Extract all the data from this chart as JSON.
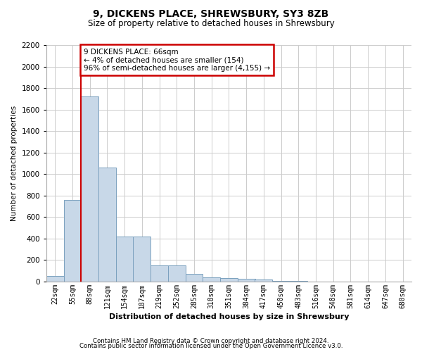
{
  "title": "9, DICKENS PLACE, SHREWSBURY, SY3 8ZB",
  "subtitle": "Size of property relative to detached houses in Shrewsbury",
  "xlabel": "Distribution of detached houses by size in Shrewsbury",
  "ylabel": "Number of detached properties",
  "footnote1": "Contains HM Land Registry data © Crown copyright and database right 2024.",
  "footnote2": "Contains public sector information licensed under the Open Government Licence v3.0.",
  "bar_labels": [
    "22sqm",
    "55sqm",
    "88sqm",
    "121sqm",
    "154sqm",
    "187sqm",
    "219sqm",
    "252sqm",
    "285sqm",
    "318sqm",
    "351sqm",
    "384sqm",
    "417sqm",
    "450sqm",
    "483sqm",
    "516sqm",
    "548sqm",
    "581sqm",
    "614sqm",
    "647sqm",
    "680sqm"
  ],
  "bar_values": [
    50,
    760,
    1720,
    1060,
    420,
    420,
    150,
    150,
    75,
    40,
    35,
    25,
    20,
    10,
    5,
    3,
    2,
    1,
    1,
    0,
    0
  ],
  "bar_color": "#c8d8e8",
  "bar_edgecolor": "#7aa0be",
  "ylim": [
    0,
    2200
  ],
  "yticks": [
    0,
    200,
    400,
    600,
    800,
    1000,
    1200,
    1400,
    1600,
    1800,
    2000,
    2200
  ],
  "vline_x_index": 1.5,
  "property_line_label": "9 DICKENS PLACE: 66sqm",
  "annotation_line1": "← 4% of detached houses are smaller (154)",
  "annotation_line2": "96% of semi-detached houses are larger (4,155) →",
  "annotation_box_color": "#ffffff",
  "annotation_box_edgecolor": "#cc0000",
  "vline_color": "#cc0000",
  "background_color": "#ffffff",
  "grid_color": "#cccccc"
}
